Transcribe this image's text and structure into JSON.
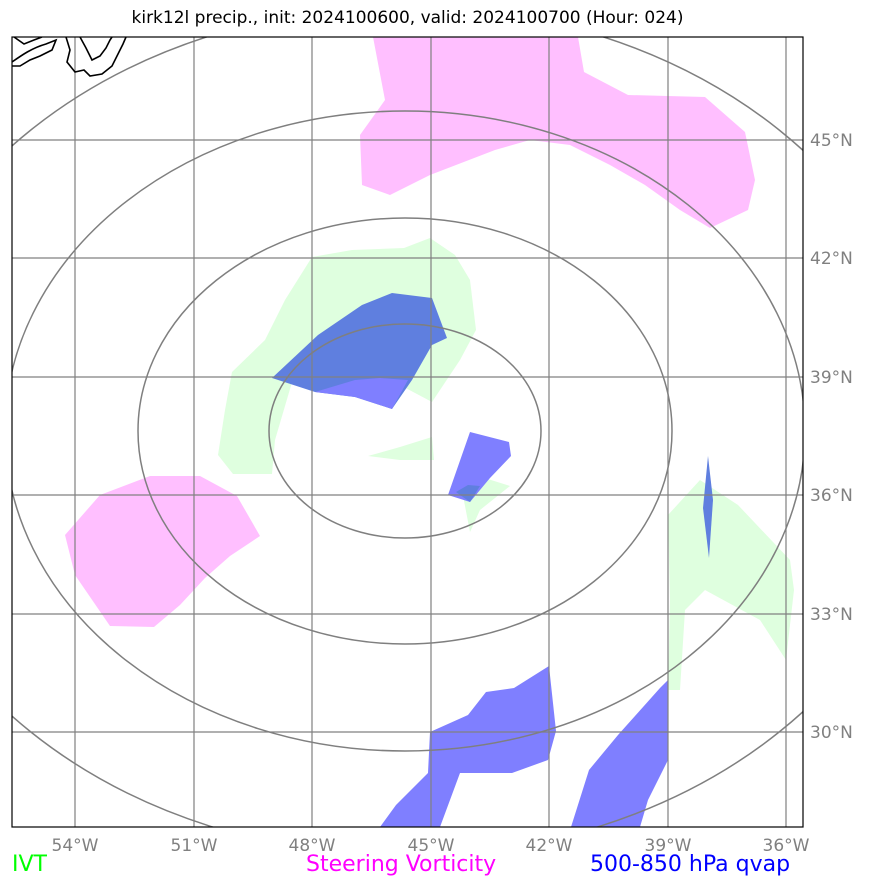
{
  "title": "kirk12l precip., init: 2024100600, valid: 2024100700 (Hour: 024)",
  "lon_labels": [
    "54°W",
    "51°W",
    "48°W",
    "45°W",
    "42°W",
    "39°W",
    "36°W"
  ],
  "lat_labels": [
    "45°N",
    "42°N",
    "39°N",
    "36°N",
    "33°N",
    "30°N"
  ],
  "legend": [
    {
      "label": "IVT",
      "color": "#00ff00"
    },
    {
      "label": "Steering Vorticity",
      "color": "#ff00ff"
    },
    {
      "label": "500-850 hPa qvap",
      "color": "#0000ff"
    }
  ],
  "colors": {
    "ivt_fill": "#dfffdf",
    "vorticity_fill": "#ffbfff",
    "qvap_fill": "#7f7fff",
    "qvap_overlap": "#5f7fdf",
    "grid": "#808080",
    "range_rings": "#7f7f7f",
    "coastline": "#000000"
  }
}
